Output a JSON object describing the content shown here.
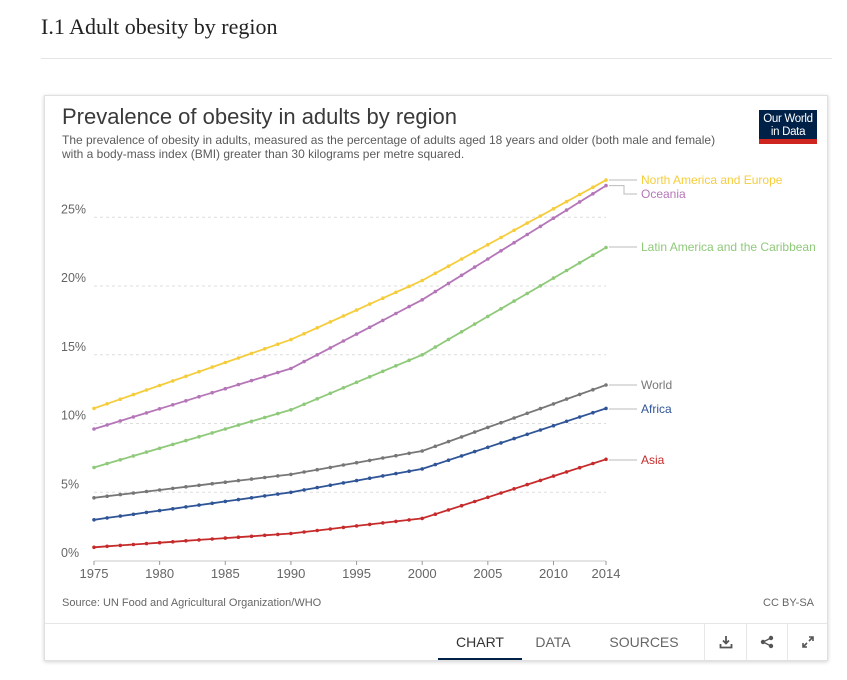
{
  "page": {
    "heading": "I.1 Adult obesity by region"
  },
  "chart": {
    "title": "Prevalence of obesity in adults by region",
    "subtitle": "The prevalence of obesity in adults, measured as the percentage of adults aged 18 years and older (both male and female) with a body-mass index (BMI) greater than 30 kilograms per metre squared.",
    "logo_line1": "Our World",
    "logo_line2": "in Data",
    "source": "Source: UN Food and Agricultural Organization/WHO",
    "license": "CC BY-SA"
  },
  "footer": {
    "tabs": [
      "CHART",
      "DATA",
      "SOURCES"
    ],
    "active_tab": "CHART",
    "icons": [
      "download-icon",
      "share-icon",
      "expand-icon"
    ]
  },
  "chart_data": {
    "type": "line",
    "title": "Prevalence of obesity in adults by region",
    "xlabel": "",
    "ylabel": "",
    "xlim": [
      1975,
      2014
    ],
    "ylim": [
      0,
      28
    ],
    "x_ticks": [
      1975,
      1980,
      1985,
      1990,
      1995,
      2000,
      2005,
      2010,
      2014
    ],
    "y_ticks": [
      0,
      5,
      10,
      15,
      20,
      25
    ],
    "y_tick_labels": [
      "0%",
      "5%",
      "10%",
      "15%",
      "20%",
      "25%"
    ],
    "grid": "horizontal dashed",
    "legend": "labels at right end of lines",
    "series": [
      {
        "name": "North America and Europe",
        "color": "#f5cd3c",
        "start": 11.1,
        "mid1990": 16.1,
        "mid2000": 20.4,
        "end": 27.7
      },
      {
        "name": "Oceania",
        "color": "#b576b8",
        "start": 9.6,
        "mid1990": 14.0,
        "mid2000": 19.0,
        "end": 27.3
      },
      {
        "name": "Latin America and the Caribbean",
        "color": "#8fc97a",
        "start": 6.8,
        "mid1990": 11.0,
        "mid2000": 15.0,
        "end": 22.8
      },
      {
        "name": "World",
        "color": "#777777",
        "start": 4.6,
        "mid1990": 6.3,
        "mid2000": 8.0,
        "end": 12.8
      },
      {
        "name": "Africa",
        "color": "#2f5597",
        "start": 3.0,
        "mid1990": 5.0,
        "mid2000": 6.7,
        "end": 11.1
      },
      {
        "name": "Asia",
        "color": "#c62b2b",
        "start": 1.0,
        "mid1990": 2.0,
        "mid2000": 3.1,
        "end": 7.4
      }
    ]
  }
}
